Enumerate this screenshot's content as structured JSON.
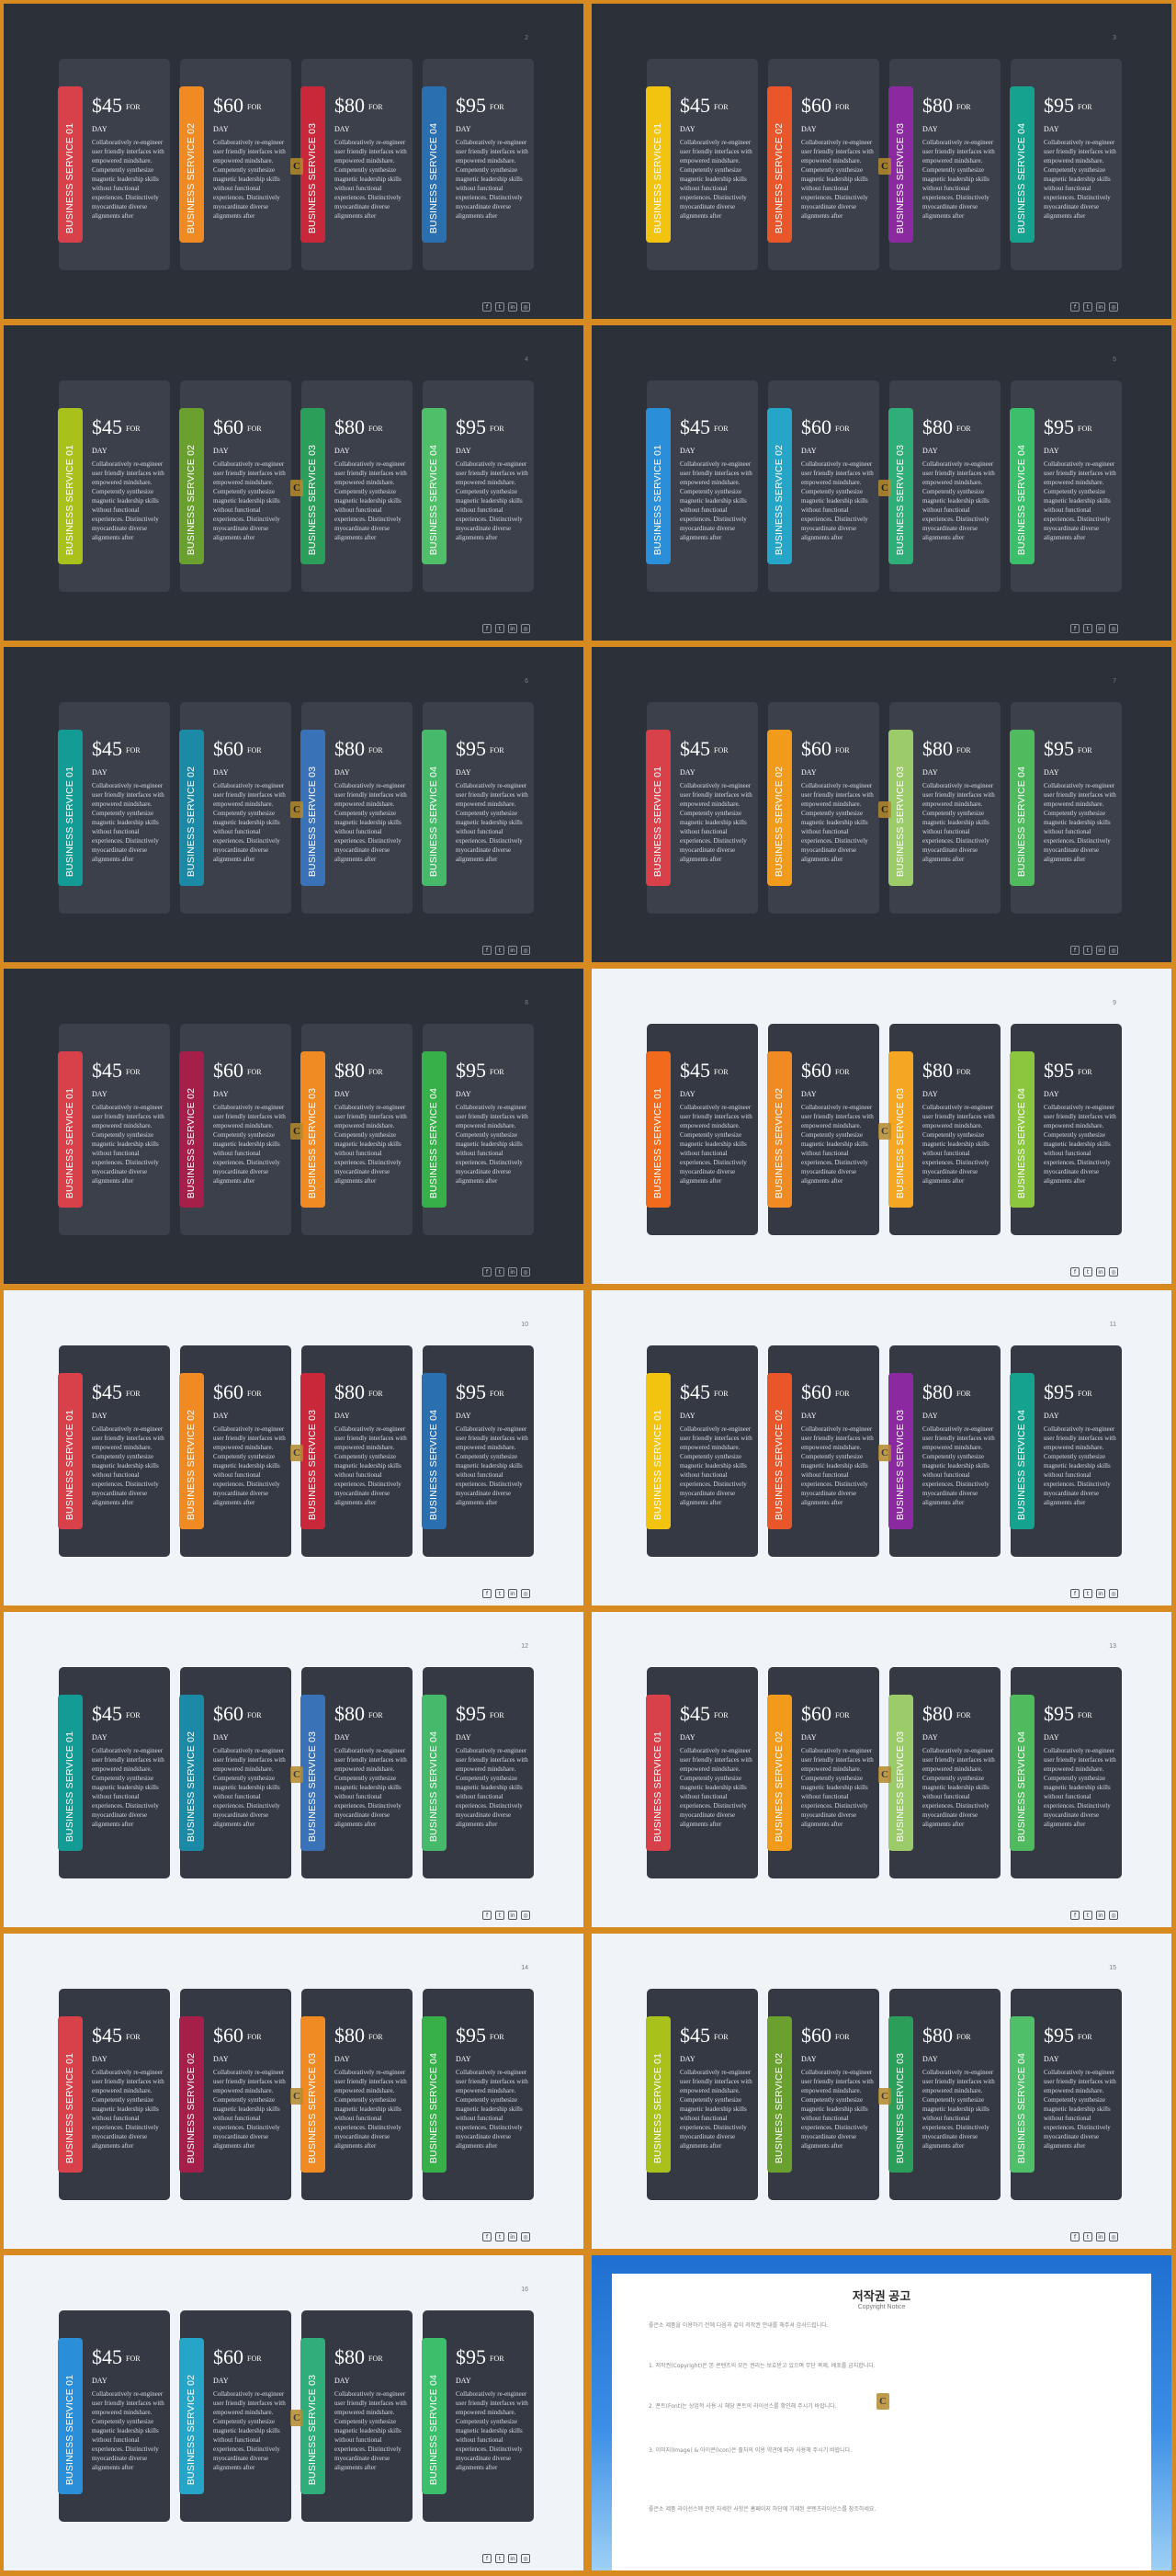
{
  "prices": [
    {
      "amount": "$45",
      "unit": "FOR",
      "day": "DAY"
    },
    {
      "amount": "$60",
      "unit": "FOR",
      "day": "DAY"
    },
    {
      "amount": "$80",
      "unit": "FOR",
      "day": "DAY"
    },
    {
      "amount": "$95",
      "unit": "FOR",
      "day": "DAY"
    }
  ],
  "service_labels": [
    "BUSINESS SERVICE 01",
    "BUSINESS SERVICE 02",
    "BUSINESS SERVICE 03",
    "BUSINESS SERVICE 04"
  ],
  "description": "Collaboratively re-engineer user friendly interfaces with empowered mindshare. Competently synthesize magnetic leadership skills without functional experiences. Distinctively myocardinate diverse alignments after",
  "social_icons": [
    {
      "name": "facebook-icon",
      "glyph": "f"
    },
    {
      "name": "twitter-icon",
      "glyph": "t"
    },
    {
      "name": "linkedin-icon",
      "glyph": "in"
    },
    {
      "name": "instagram-icon",
      "glyph": "◎"
    }
  ],
  "badge_letter": "C",
  "slides": [
    {
      "theme": "dark",
      "num": "2",
      "colors": [
        "#d8404a",
        "#f08a22",
        "#c8283a",
        "#2a6fb0"
      ]
    },
    {
      "theme": "dark",
      "num": "3",
      "colors": [
        "#f2c40f",
        "#e8562a",
        "#8b2aa0",
        "#15a38f"
      ]
    },
    {
      "theme": "dark",
      "num": "4",
      "colors": [
        "#a8c21b",
        "#6aa12e",
        "#2b9e5a",
        "#4fbf6a"
      ]
    },
    {
      "theme": "dark",
      "num": "5",
      "colors": [
        "#2a8fd8",
        "#25a6c8",
        "#2fae7a",
        "#3cbf6b"
      ]
    },
    {
      "theme": "dark",
      "num": "6",
      "colors": [
        "#129c95",
        "#1a8aa6",
        "#3a72b8",
        "#46b96a"
      ]
    },
    {
      "theme": "dark",
      "num": "7",
      "colors": [
        "#d8404a",
        "#f29a1a",
        "#9ccc6a",
        "#50bb5e"
      ]
    },
    {
      "theme": "dark",
      "num": "8",
      "colors": [
        "#d8404a",
        "#a51f4a",
        "#f08a22",
        "#38b04a"
      ]
    },
    {
      "theme": "light",
      "num": "9",
      "colors": [
        "#f26b1c",
        "#f08a22",
        "#f5a623",
        "#8cc63f"
      ]
    },
    {
      "theme": "light",
      "num": "10",
      "colors": [
        "#d8404a",
        "#f08a22",
        "#c8283a",
        "#2a6fb0"
      ]
    },
    {
      "theme": "light",
      "num": "11",
      "colors": [
        "#f2c40f",
        "#e8562a",
        "#8b2aa0",
        "#15a38f"
      ]
    },
    {
      "theme": "light",
      "num": "12",
      "colors": [
        "#129c95",
        "#1a8aa6",
        "#3a72b8",
        "#46b96a"
      ]
    },
    {
      "theme": "light",
      "num": "13",
      "colors": [
        "#d8404a",
        "#f29a1a",
        "#9ccc6a",
        "#50bb5e"
      ]
    },
    {
      "theme": "light",
      "num": "14",
      "colors": [
        "#d8404a",
        "#a51f4a",
        "#f08a22",
        "#38b04a"
      ]
    },
    {
      "theme": "light",
      "num": "15",
      "colors": [
        "#a8c21b",
        "#6aa12e",
        "#2b9e5a",
        "#4fbf6a"
      ]
    },
    {
      "theme": "light",
      "num": "16",
      "colors": [
        "#2a8fd8",
        "#25a6c8",
        "#2fae7a",
        "#3cbf6b"
      ]
    }
  ],
  "notice": {
    "title": "저작권 공고",
    "subtitle": "Copyright Notice",
    "paragraphs": [
      "좋은소 제품을 이용하기 전에 다음과 같이 저작권 안내를 해주셔 감사드립니다.",
      "1. 저작권(Copyright)은 본 콘텐츠의 모든 권리는 보호받고 있으며 무단 복제, 배포를 금지합니다.",
      "2. 폰트(Font)는 상업적 사용 시 해당 폰트의 라이선스를 확인해 주시기 바랍니다.",
      "3. 이미지(Image) & 아이콘(Icon)은 출처의 이용 약관에 따라 사용해 주시기 바랍니다.",
      "좋은소 제품 라이선스에 관한 자세한 사항은 홈페이지 하단에 기재된 콘텐츠라이선스를 참조하세요."
    ]
  }
}
